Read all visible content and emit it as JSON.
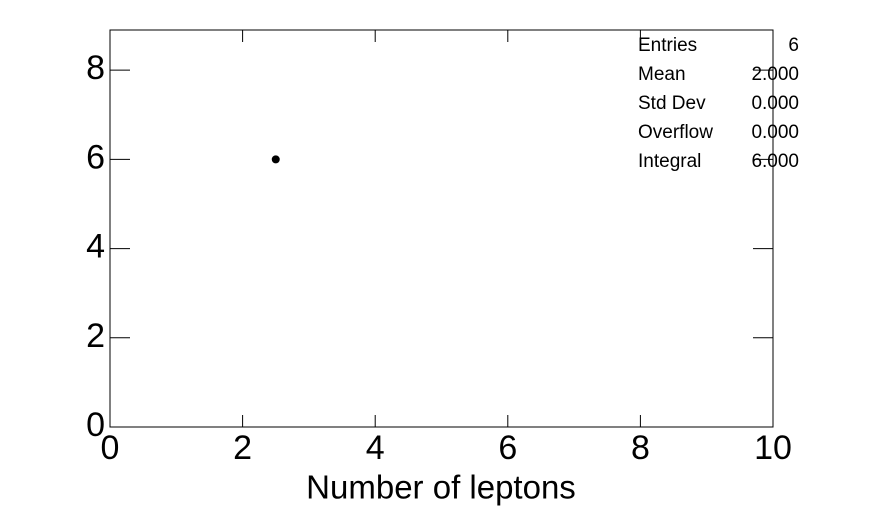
{
  "chart_data": {
    "type": "scatter",
    "x_label": "Number of leptons",
    "x": [
      2.5
    ],
    "values": [
      6
    ],
    "color": "#000000",
    "xlim": [
      0,
      10
    ],
    "xticks": [
      0,
      2,
      4,
      6,
      8,
      10
    ],
    "ylim": [
      0,
      8.9
    ],
    "yticks": [
      0,
      2,
      4,
      6,
      8
    ],
    "stats": [
      {
        "label": "Entries",
        "value": "6"
      },
      {
        "label": "Mean",
        "value": "2.000"
      },
      {
        "label": "Std Dev",
        "value": "0.000"
      },
      {
        "label": "Overflow",
        "value": "0.000"
      },
      {
        "label": "Integral",
        "value": "6.000"
      }
    ]
  }
}
